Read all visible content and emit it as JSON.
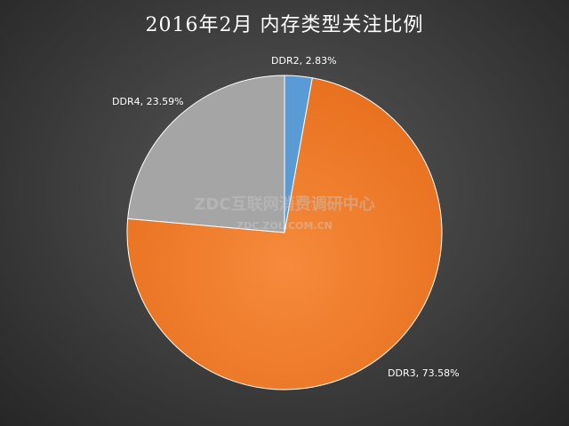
{
  "chart_data": {
    "type": "pie",
    "title": "2016年2月 内存类型关注比例",
    "slices": [
      {
        "name": "DDR2",
        "value": 2.83,
        "label": "DDR2, 2.83%",
        "color": "#5b9bd5"
      },
      {
        "name": "DDR3",
        "value": 73.58,
        "label": "DDR3, 73.58%",
        "color": "#f07f2c"
      },
      {
        "name": "DDR4",
        "value": 23.59,
        "label": "DDR4, 23.59%",
        "color": "#a5a5a5"
      }
    ]
  },
  "watermark": {
    "line1": "ZDC互联网消费调研中心",
    "line2": "ZDC.ZOL.COM.CN"
  }
}
